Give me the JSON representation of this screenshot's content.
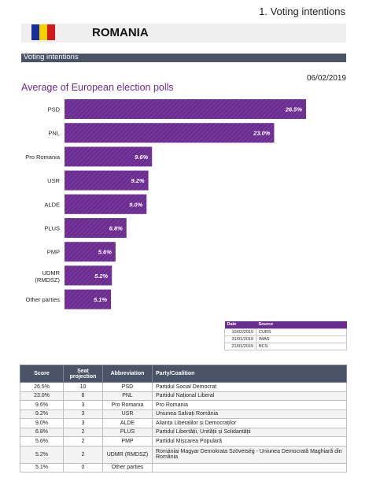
{
  "page_label": "1. Voting intentions",
  "country": "ROMANIA",
  "flag_colors": [
    "#1a2c9c",
    "#f5d000",
    "#d31a1a"
  ],
  "section_title": "Voting intentions",
  "date": "06/02/2019",
  "accent_color": "#6b2c8f",
  "chart_data": {
    "type": "bar",
    "orientation": "horizontal",
    "title": "Average of European election polls",
    "categories": [
      "PSD",
      "PNL",
      "Pro Romania",
      "USR",
      "ALDE",
      "PLUS",
      "PMP",
      "UDMR (RMDSZ)",
      "Other parties"
    ],
    "values": [
      26.5,
      23.0,
      9.6,
      9.2,
      9.0,
      6.8,
      5.6,
      5.2,
      5.1
    ],
    "value_labels": [
      "26.5%",
      "23.0%",
      "9.6%",
      "9.2%",
      "9.0%",
      "6.8%",
      "5.6%",
      "5.2%",
      "5.1%"
    ],
    "xlim": [
      0,
      30
    ],
    "grid": false,
    "bar_color": "#6b2c8f"
  },
  "sources": {
    "headers": [
      "Date",
      "Source"
    ],
    "rows": [
      {
        "date": "10/02/2019",
        "source": "CURS"
      },
      {
        "date": "31/01/2019",
        "source": "IMAS"
      },
      {
        "date": "21/01/2019",
        "source": "BCS"
      }
    ]
  },
  "table": {
    "headers": [
      "Score",
      "Seat projection",
      "Abbreviation",
      "Party/Coalition"
    ],
    "rows": [
      {
        "score": "26.5%",
        "seats": "10",
        "abbr": "PSD",
        "party": "Partidul Social Democrat"
      },
      {
        "score": "23.0%",
        "seats": "8",
        "abbr": "PNL",
        "party": "Partidul Național Liberal"
      },
      {
        "score": "9.6%",
        "seats": "3",
        "abbr": "Pro Romania",
        "party": "Pro Romania"
      },
      {
        "score": "9.2%",
        "seats": "3",
        "abbr": "USR",
        "party": "Uniunea Salvați România"
      },
      {
        "score": "9.0%",
        "seats": "3",
        "abbr": "ALDE",
        "party": "Alianța Liberalilor și Democraților"
      },
      {
        "score": "6.8%",
        "seats": "2",
        "abbr": "PLUS",
        "party": "Partidul Libertății, Unității și Solidarității"
      },
      {
        "score": "5.6%",
        "seats": "2",
        "abbr": "PMP",
        "party": "Partidul Mișcarea Populară"
      },
      {
        "score": "5.2%",
        "seats": "2",
        "abbr": "UDMR (RMDSZ)",
        "party": "Romániai Magyar Demokrata Szövetség - Uniunea Democrată Maghiară din România"
      },
      {
        "score": "5.1%",
        "seats": "0",
        "abbr": "Other parties",
        "party": ""
      }
    ]
  }
}
